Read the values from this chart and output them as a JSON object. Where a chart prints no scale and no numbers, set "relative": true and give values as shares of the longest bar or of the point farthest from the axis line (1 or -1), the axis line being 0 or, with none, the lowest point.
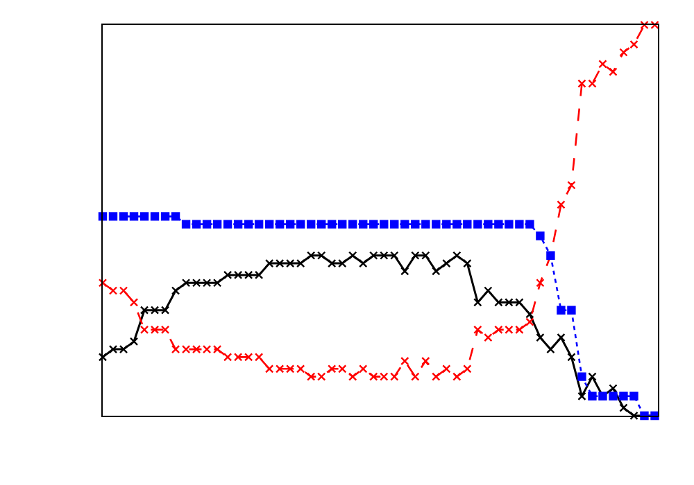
{
  "chart_data": {
    "type": "line",
    "relative": true,
    "tick_labels": false,
    "categories": [
      null,
      null,
      null,
      null,
      null,
      null,
      null,
      null,
      null,
      null,
      null,
      null,
      null,
      null,
      null,
      null,
      null,
      null,
      null,
      null,
      null,
      null,
      null,
      null,
      null,
      null,
      null,
      null,
      null,
      null,
      null,
      null,
      null,
      null,
      null,
      null,
      null,
      null,
      null,
      null,
      null,
      null,
      null,
      null,
      null,
      null,
      null,
      null,
      null,
      null,
      null,
      null,
      null,
      null
    ],
    "series": [
      {
        "color": "#000000",
        "marker": "cross",
        "line_style": "solid",
        "values": [
          0.15,
          0.17,
          0.17,
          0.19,
          0.27,
          0.27,
          0.27,
          0.32,
          0.34,
          0.34,
          0.34,
          0.34,
          0.36,
          0.36,
          0.36,
          0.36,
          0.39,
          0.39,
          0.39,
          0.39,
          0.41,
          0.41,
          0.39,
          0.39,
          0.41,
          0.39,
          0.41,
          0.41,
          0.41,
          0.37,
          0.41,
          0.41,
          0.37,
          0.39,
          0.41,
          0.39,
          0.29,
          0.32,
          0.29,
          0.29,
          0.29,
          0.26,
          0.2,
          0.17,
          0.2,
          0.15,
          0.05,
          0.1,
          0.05,
          0.07,
          0.02,
          0,
          0,
          0
        ]
      },
      {
        "color": "#ff0000",
        "marker": "cross",
        "line_style": "dashed",
        "values": [
          0.34,
          0.32,
          0.32,
          0.29,
          0.22,
          0.22,
          0.22,
          0.17,
          0.17,
          0.17,
          0.17,
          0.17,
          0.15,
          0.15,
          0.15,
          0.15,
          0.12,
          0.12,
          0.12,
          0.12,
          0.1,
          0.1,
          0.12,
          0.12,
          0.1,
          0.12,
          0.1,
          0.1,
          0.1,
          0.14,
          0.1,
          0.14,
          0.1,
          0.12,
          0.1,
          0.12,
          0.22,
          0.2,
          0.22,
          0.22,
          0.22,
          0.24,
          0.34,
          0.41,
          0.54,
          0.59,
          0.85,
          0.85,
          0.9,
          0.88,
          0.93,
          0.95,
          1,
          1
        ]
      },
      {
        "color": "#0000ff",
        "marker": "square",
        "line_style": "dotted",
        "values": [
          0.51,
          0.51,
          0.51,
          0.51,
          0.51,
          0.51,
          0.51,
          0.51,
          0.49,
          0.49,
          0.49,
          0.49,
          0.49,
          0.49,
          0.49,
          0.49,
          0.49,
          0.49,
          0.49,
          0.49,
          0.49,
          0.49,
          0.49,
          0.49,
          0.49,
          0.49,
          0.49,
          0.49,
          0.49,
          0.49,
          0.49,
          0.49,
          0.49,
          0.49,
          0.49,
          0.49,
          0.49,
          0.49,
          0.49,
          0.49,
          0.49,
          0.49,
          0.46,
          0.41,
          0.27,
          0.27,
          0.1,
          0.05,
          0.05,
          0.05,
          0.05,
          0.05,
          0,
          0
        ]
      }
    ]
  }
}
